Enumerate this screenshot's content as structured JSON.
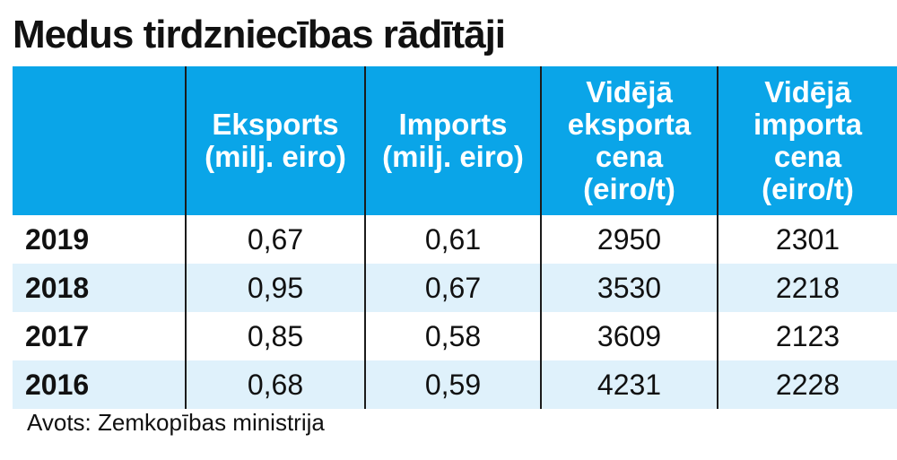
{
  "title": "Medus tirdzniecības rādītāji",
  "source": "Avots: Zemkopības ministrija",
  "colors": {
    "header_bg": "#0aa5e8",
    "alt_row_bg": "#dff1fb",
    "divider": "#1b1b1b"
  },
  "chart_data": {
    "type": "table",
    "title": "Medus tirdzniecības rādītāji",
    "columns": [
      "",
      "Eksports\n(milj. eiro)",
      "Imports\n(milj. eiro)",
      "Vidējā\neksporta\ncena\n(eiro/t)",
      "Vidējā\nimporta\ncena\n(eiro/t)"
    ],
    "rows": [
      {
        "year": "2019",
        "export": "0,67",
        "import": "0,61",
        "avg_export_price": "2950",
        "avg_import_price": "2301"
      },
      {
        "year": "2018",
        "export": "0,95",
        "import": "0,67",
        "avg_export_price": "3530",
        "avg_import_price": "2218"
      },
      {
        "year": "2017",
        "export": "0,85",
        "import": "0,58",
        "avg_export_price": "3609",
        "avg_import_price": "2123"
      },
      {
        "year": "2016",
        "export": "0,68",
        "import": "0,59",
        "avg_export_price": "4231",
        "avg_import_price": "2228"
      }
    ],
    "source": "Avots: Zemkopības ministrija"
  }
}
